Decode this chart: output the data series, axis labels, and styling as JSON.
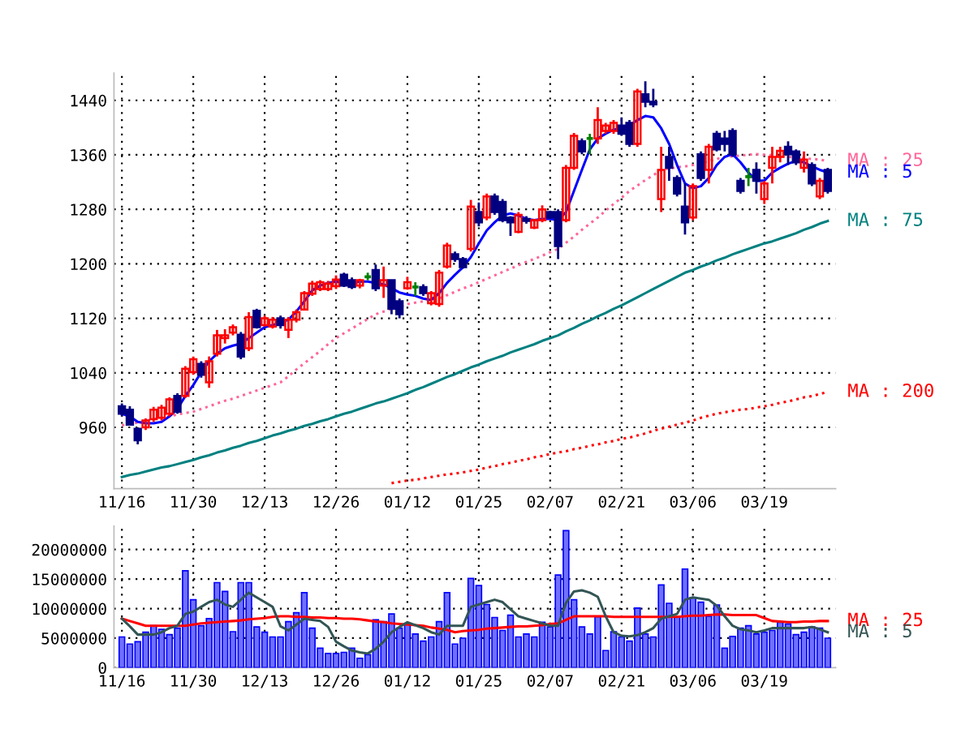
{
  "chart_data": [
    {
      "type": "candlestick",
      "categories": [
        "11/16",
        null,
        null,
        null,
        null,
        null,
        null,
        null,
        null,
        "11/30",
        null,
        null,
        null,
        null,
        null,
        null,
        null,
        null,
        "12/13",
        null,
        null,
        null,
        null,
        null,
        null,
        null,
        null,
        "12/26",
        null,
        null,
        null,
        null,
        null,
        null,
        null,
        null,
        "01/12",
        null,
        null,
        null,
        null,
        null,
        null,
        null,
        null,
        "01/25",
        null,
        null,
        null,
        null,
        null,
        null,
        null,
        null,
        "02/07",
        null,
        null,
        null,
        null,
        null,
        null,
        null,
        null,
        "02/21",
        null,
        null,
        null,
        null,
        null,
        null,
        null,
        null,
        "03/06",
        null,
        null,
        null,
        null,
        null,
        null,
        null,
        null,
        "03/19",
        null,
        null,
        null,
        null,
        null,
        null,
        null,
        null
      ],
      "ohlc": [
        [
          991,
          995,
          976,
          980
        ],
        [
          986,
          991,
          963,
          964
        ],
        [
          958,
          960,
          935,
          941
        ],
        [
          960,
          973,
          956,
          970
        ],
        [
          972,
          990,
          968,
          986
        ],
        [
          974,
          993,
          970,
          989
        ],
        [
          980,
          1004,
          976,
          1001
        ],
        [
          1006,
          1010,
          980,
          983
        ],
        [
          1006,
          1050,
          1003,
          1046
        ],
        [
          1041,
          1064,
          1037,
          1060
        ],
        [
          1053,
          1057,
          1033,
          1037
        ],
        [
          1026,
          1064,
          1018,
          1057
        ],
        [
          1068,
          1103,
          1064,
          1095
        ],
        [
          1091,
          1104,
          1083,
          1095
        ],
        [
          1099,
          1111,
          1095,
          1107
        ],
        [
          1096,
          1100,
          1060,
          1064
        ],
        [
          1076,
          1129,
          1072,
          1122
        ],
        [
          1131,
          1134,
          1105,
          1107
        ],
        [
          1110,
          1124,
          1108,
          1120
        ],
        [
          1108,
          1122,
          1105,
          1118
        ],
        [
          1120,
          1124,
          1105,
          1110
        ],
        [
          1103,
          1122,
          1091,
          1118
        ],
        [
          1118,
          1133,
          1114,
          1129
        ],
        [
          1133,
          1160,
          1133,
          1157
        ],
        [
          1156,
          1175,
          1153,
          1171
        ],
        [
          1163,
          1176,
          1160,
          1173
        ],
        [
          1163,
          1175,
          1160,
          1171
        ],
        [
          1167,
          1183,
          1163,
          1177
        ],
        [
          1184,
          1187,
          1166,
          1168
        ],
        [
          1176,
          1180,
          1163,
          1166
        ],
        [
          1168,
          1178,
          1164,
          1176
        ],
        [
          1181,
          1187,
          1176,
          1181
        ],
        [
          1191,
          1199,
          1160,
          1164
        ],
        [
          1168,
          1196,
          1150,
          1176
        ],
        [
          1176,
          1176,
          1126,
          1134
        ],
        [
          1145,
          1149,
          1120,
          1126
        ],
        [
          1164,
          1181,
          1162,
          1173
        ],
        [
          1166,
          1173,
          1153,
          1166
        ],
        [
          1166,
          1170,
          1153,
          1157
        ],
        [
          1142,
          1160,
          1139,
          1157
        ],
        [
          1141,
          1191,
          1137,
          1187
        ],
        [
          1196,
          1231,
          1193,
          1227
        ],
        [
          1214,
          1218,
          1203,
          1207
        ],
        [
          1207,
          1210,
          1193,
          1195
        ],
        [
          1222,
          1294,
          1218,
          1284
        ],
        [
          1276,
          1290,
          1255,
          1261
        ],
        [
          1268,
          1303,
          1264,
          1299
        ],
        [
          1299,
          1303,
          1272,
          1276
        ],
        [
          1291,
          1295,
          1261,
          1264
        ],
        [
          1268,
          1270,
          1241,
          1261
        ],
        [
          1247,
          1276,
          1245,
          1272
        ],
        [
          1266,
          1270,
          1259,
          1263
        ],
        [
          1253,
          1266,
          1251,
          1264
        ],
        [
          1264,
          1286,
          1261,
          1280
        ],
        [
          1276,
          1278,
          1266,
          1268
        ],
        [
          1276,
          1280,
          1207,
          1226
        ],
        [
          1264,
          1345,
          1261,
          1341
        ],
        [
          1341,
          1392,
          1338,
          1388
        ],
        [
          1380,
          1384,
          1361,
          1365
        ],
        [
          1384,
          1391,
          1361,
          1384
        ],
        [
          1384,
          1430,
          1376,
          1411
        ],
        [
          1395,
          1407,
          1391,
          1403
        ],
        [
          1395,
          1411,
          1391,
          1407
        ],
        [
          1403,
          1415,
          1388,
          1391
        ],
        [
          1407,
          1411,
          1372,
          1376
        ],
        [
          1376,
          1457,
          1372,
          1453
        ],
        [
          1449,
          1468,
          1430,
          1438
        ],
        [
          1438,
          1457,
          1430,
          1434
        ],
        [
          1295,
          1372,
          1276,
          1338
        ],
        [
          1357,
          1372,
          1322,
          1341
        ],
        [
          1326,
          1330,
          1299,
          1303
        ],
        [
          1284,
          1318,
          1243,
          1261
        ],
        [
          1268,
          1318,
          1264,
          1314
        ],
        [
          1361,
          1365,
          1322,
          1326
        ],
        [
          1338,
          1376,
          1318,
          1372
        ],
        [
          1391,
          1395,
          1365,
          1368
        ],
        [
          1384,
          1395,
          1365,
          1376
        ],
        [
          1395,
          1399,
          1357,
          1361
        ],
        [
          1322,
          1326,
          1303,
          1307
        ],
        [
          1328,
          1341,
          1314,
          1328
        ],
        [
          1338,
          1349,
          1303,
          1322
        ],
        [
          1295,
          1322,
          1288,
          1318
        ],
        [
          1341,
          1372,
          1318,
          1357
        ],
        [
          1357,
          1372,
          1349,
          1366
        ],
        [
          1372,
          1380,
          1345,
          1361
        ],
        [
          1365,
          1368,
          1345,
          1349
        ],
        [
          1341,
          1365,
          1334,
          1353
        ],
        [
          1345,
          1349,
          1314,
          1318
        ],
        [
          1299,
          1326,
          1295,
          1322
        ],
        [
          1338,
          1341,
          1303,
          1307
        ]
      ],
      "colors": [
        "#000080",
        "#000080",
        "#000080",
        "#ff0000",
        "#ff0000",
        "#ff0000",
        "#ff0000",
        "#000080",
        "#ff0000",
        "#ff0000",
        "#000080",
        "#ff0000",
        "#ff0000",
        "#ff0000",
        "#ff0000",
        "#000080",
        "#ff0000",
        "#000080",
        "#ff0000",
        "#ff0000",
        "#000080",
        "#ff0000",
        "#ff0000",
        "#ff0000",
        "#ff0000",
        "#ff0000",
        "#ff0000",
        "#ff0000",
        "#000080",
        "#000080",
        "#ff0000",
        "#008000",
        "#000080",
        "#ff0000",
        "#000080",
        "#000080",
        "#ff0000",
        "#008000",
        "#000080",
        "#ff0000",
        "#ff0000",
        "#ff0000",
        "#000080",
        "#000080",
        "#ff0000",
        "#000080",
        "#ff0000",
        "#000080",
        "#000080",
        "#000080",
        "#ff0000",
        "#000080",
        "#ff0000",
        "#ff0000",
        "#000080",
        "#000080",
        "#ff0000",
        "#ff0000",
        "#000080",
        "#008000",
        "#ff0000",
        "#ff0000",
        "#ff0000",
        "#000080",
        "#000080",
        "#ff0000",
        "#000080",
        "#000080",
        "#ff0000",
        "#000080",
        "#000080",
        "#000080",
        "#ff0000",
        "#000080",
        "#ff0000",
        "#000080",
        "#000080",
        "#000080",
        "#000080",
        "#008000",
        "#000080",
        "#ff0000",
        "#ff0000",
        "#ff0000",
        "#000080",
        "#000080",
        "#ff0000",
        "#000080",
        "#ff0000",
        "#000080"
      ],
      "series": [
        {
          "type": "line",
          "name": "MA : 25",
          "color": "#ff6699",
          "line_style": "dotted",
          "values": [
            963,
            965,
            967,
            970,
            972,
            974,
            976,
            979,
            981,
            983,
            987,
            991,
            995,
            999,
            1002,
            1006,
            1010,
            1014,
            1018,
            1022,
            1026,
            1035,
            1045,
            1054,
            1063,
            1072,
            1082,
            1091,
            1098,
            1105,
            1112,
            1119,
            1126,
            1130,
            1134,
            1137,
            1141,
            1143,
            1145,
            1147,
            1149,
            1154,
            1159,
            1164,
            1168,
            1173,
            1178,
            1183,
            1188,
            1193,
            1198,
            1203,
            1207,
            1212,
            1217,
            1222,
            1231,
            1240,
            1250,
            1259,
            1268,
            1278,
            1288,
            1297,
            1307,
            1315,
            1323,
            1330,
            1338,
            1340,
            1342,
            1343,
            1345,
            1348,
            1351,
            1354,
            1357,
            1358,
            1359,
            1360,
            1361,
            1360,
            1359,
            1358,
            1357,
            1356,
            1355,
            1354,
            1353,
            1351
          ]
        },
        {
          "type": "line",
          "name": "MA : 5",
          "color": "#0000ff",
          "line_style": "solid",
          "values": [
            980,
            976,
            968,
            966,
            966,
            968,
            976,
            987,
            1006,
            1022,
            1041,
            1057,
            1068,
            1076,
            1080,
            1083,
            1091,
            1099,
            1107,
            1110,
            1114,
            1118,
            1130,
            1145,
            1161,
            1168,
            1172,
            1174,
            1172,
            1172,
            1174,
            1174,
            1172,
            1170,
            1164,
            1158,
            1155,
            1153,
            1149,
            1147,
            1157,
            1172,
            1184,
            1195,
            1210,
            1230,
            1249,
            1261,
            1271,
            1274,
            1271,
            1266,
            1264,
            1266,
            1266,
            1264,
            1276,
            1307,
            1338,
            1368,
            1384,
            1391,
            1397,
            1399,
            1403,
            1411,
            1417,
            1415,
            1399,
            1376,
            1345,
            1318,
            1311,
            1314,
            1326,
            1345,
            1357,
            1361,
            1349,
            1334,
            1322,
            1322,
            1334,
            1341,
            1347,
            1351,
            1349,
            1343,
            1338,
            1334
          ]
        },
        {
          "type": "line",
          "name": "MA : 75",
          "color": "#008080",
          "line_style": "solid",
          "values": [
            887,
            890,
            892,
            895,
            898,
            901,
            903,
            906,
            909,
            912,
            916,
            919,
            923,
            926,
            930,
            933,
            937,
            940,
            944,
            948,
            951,
            955,
            958,
            962,
            965,
            969,
            972,
            976,
            980,
            983,
            987,
            991,
            995,
            998,
            1002,
            1006,
            1010,
            1015,
            1019,
            1024,
            1029,
            1034,
            1038,
            1043,
            1048,
            1052,
            1057,
            1061,
            1065,
            1070,
            1074,
            1078,
            1082,
            1087,
            1091,
            1095,
            1101,
            1106,
            1112,
            1117,
            1123,
            1128,
            1134,
            1139,
            1145,
            1151,
            1157,
            1163,
            1169,
            1175,
            1181,
            1187,
            1191,
            1196,
            1200,
            1205,
            1209,
            1214,
            1218,
            1222,
            1226,
            1230,
            1233,
            1237,
            1241,
            1245,
            1250,
            1254,
            1259,
            1263
          ]
        },
        {
          "type": "line",
          "name": "MA : 200",
          "color": "#ff0000",
          "line_style": "dotted",
          "values": [
            null,
            null,
            null,
            null,
            null,
            null,
            null,
            null,
            null,
            null,
            null,
            null,
            null,
            null,
            null,
            null,
            null,
            null,
            null,
            null,
            null,
            null,
            null,
            null,
            null,
            null,
            null,
            null,
            null,
            null,
            null,
            null,
            null,
            null,
            878,
            880,
            882,
            883,
            885,
            887,
            889,
            891,
            892,
            894,
            896,
            898,
            901,
            903,
            906,
            908,
            911,
            913,
            916,
            918,
            921,
            923,
            925,
            928,
            930,
            933,
            935,
            938,
            940,
            943,
            945,
            948,
            951,
            955,
            958,
            961,
            964,
            967,
            970,
            974,
            977,
            980,
            982,
            984,
            986,
            987,
            989,
            991,
            993,
            996,
            998,
            1001,
            1004,
            1006,
            1009,
            1012
          ]
        }
      ],
      "ylim": [
        870,
        1480
      ],
      "yticks": [
        960,
        1040,
        1120,
        1200,
        1280,
        1360,
        1440
      ],
      "grid": true
    },
    {
      "type": "bar",
      "categories": [
        "11/16",
        null,
        null,
        null,
        null,
        null,
        null,
        null,
        null,
        "11/30",
        null,
        null,
        null,
        null,
        null,
        null,
        null,
        null,
        "12/13",
        null,
        null,
        null,
        null,
        null,
        null,
        null,
        null,
        "12/26",
        null,
        null,
        null,
        null,
        null,
        null,
        null,
        null,
        "01/12",
        null,
        null,
        null,
        null,
        null,
        null,
        null,
        null,
        "01/25",
        null,
        null,
        null,
        null,
        null,
        null,
        null,
        null,
        "02/07",
        null,
        null,
        null,
        null,
        null,
        null,
        null,
        null,
        "02/21",
        null,
        null,
        null,
        null,
        null,
        null,
        null,
        null,
        "03/06",
        null,
        null,
        null,
        null,
        null,
        null,
        null,
        null,
        "03/19",
        null,
        null,
        null,
        null,
        null,
        null,
        null,
        null
      ],
      "color": "#7070ff",
      "values": [
        5200000,
        4000000,
        4400000,
        6000000,
        7100000,
        6500000,
        5600000,
        6700000,
        16400000,
        11500000,
        7100000,
        8300000,
        14400000,
        12900000,
        6100000,
        14400000,
        14400000,
        6900000,
        6000000,
        5200000,
        5200000,
        7800000,
        9300000,
        12700000,
        6700000,
        3300000,
        2400000,
        2400000,
        2600000,
        3300000,
        1600000,
        2200000,
        8100000,
        7800000,
        9100000,
        6700000,
        7400000,
        5700000,
        4500000,
        5200000,
        7800000,
        12700000,
        4000000,
        5000000,
        15100000,
        13900000,
        10700000,
        8500000,
        6300000,
        8900000,
        5200000,
        5700000,
        5200000,
        7700000,
        6900000,
        15700000,
        23200000,
        11500000,
        6900000,
        5700000,
        8600000,
        2900000,
        6100000,
        5200000,
        4500000,
        10100000,
        5700000,
        5200000,
        14000000,
        10900000,
        8600000,
        16700000,
        11900000,
        11100000,
        8700000,
        10600000,
        3300000,
        5300000,
        6700000,
        7100000,
        5700000,
        6000000,
        6300000,
        7700000,
        7400000,
        5600000,
        6000000,
        6900000,
        6700000,
        5000000
      ],
      "series": [
        {
          "type": "line",
          "name": "MA : 25",
          "color": "#ff0000",
          "line_style": "solid",
          "values": [
            8300000,
            7900000,
            7500000,
            7100000,
            7100000,
            7100000,
            7100000,
            7100000,
            7100000,
            7300000,
            7500000,
            7600000,
            7700000,
            7800000,
            7900000,
            8000000,
            8200000,
            8300000,
            8400000,
            8600000,
            8700000,
            8700000,
            8600000,
            8600000,
            8500000,
            8500000,
            8400000,
            8400000,
            8300000,
            8300000,
            8200000,
            8000000,
            7800000,
            7700000,
            7500000,
            7400000,
            7300000,
            7200000,
            7100000,
            6800000,
            6600000,
            6400000,
            6000000,
            6200000,
            6300000,
            6400000,
            6600000,
            6700000,
            6800000,
            6900000,
            7000000,
            7000000,
            7100000,
            7200000,
            7400000,
            7500000,
            8100000,
            8700000,
            8700000,
            8700000,
            8700000,
            8700000,
            8600000,
            8600000,
            8600000,
            8600000,
            8600000,
            8600000,
            8600000,
            8600000,
            8600000,
            8700000,
            8800000,
            8800000,
            8900000,
            9000000,
            9000000,
            8900000,
            8900000,
            8900000,
            8900000,
            8400000,
            7900000,
            7800000,
            7700000,
            7700000,
            7800000,
            7800000,
            7900000,
            7900000
          ]
        },
        {
          "type": "line",
          "name": "MA : 5",
          "color": "#335555",
          "line_style": "solid",
          "values": [
            8300000,
            7000000,
            5600000,
            5600000,
            5600000,
            6000000,
            6700000,
            7100000,
            9100000,
            9500000,
            10300000,
            11100000,
            11500000,
            10700000,
            10300000,
            11500000,
            12700000,
            11900000,
            11100000,
            10300000,
            7000000,
            6300000,
            7300000,
            8300000,
            8100000,
            7900000,
            6900000,
            4400000,
            3600000,
            2900000,
            2600000,
            2400000,
            3200000,
            4400000,
            6000000,
            6900000,
            7700000,
            7200000,
            6700000,
            6000000,
            5600000,
            7100000,
            7100000,
            7100000,
            10300000,
            10700000,
            11100000,
            11500000,
            11100000,
            9900000,
            8700000,
            8300000,
            7900000,
            7500000,
            7100000,
            7100000,
            11000000,
            12900000,
            13100000,
            12700000,
            12000000,
            8700000,
            6000000,
            5400000,
            5300000,
            5500000,
            6000000,
            6700000,
            8300000,
            8700000,
            9100000,
            11500000,
            11900000,
            11700000,
            11500000,
            10500000,
            8700000,
            7100000,
            6500000,
            6300000,
            6000000,
            6300000,
            6700000,
            6700000,
            6700000,
            6700000,
            6700000,
            6900000,
            6500000,
            6000000
          ]
        }
      ],
      "ylim": [
        0,
        24000000
      ],
      "yticks": [
        0,
        5000000,
        10000000,
        15000000,
        20000000
      ],
      "grid": true
    }
  ]
}
